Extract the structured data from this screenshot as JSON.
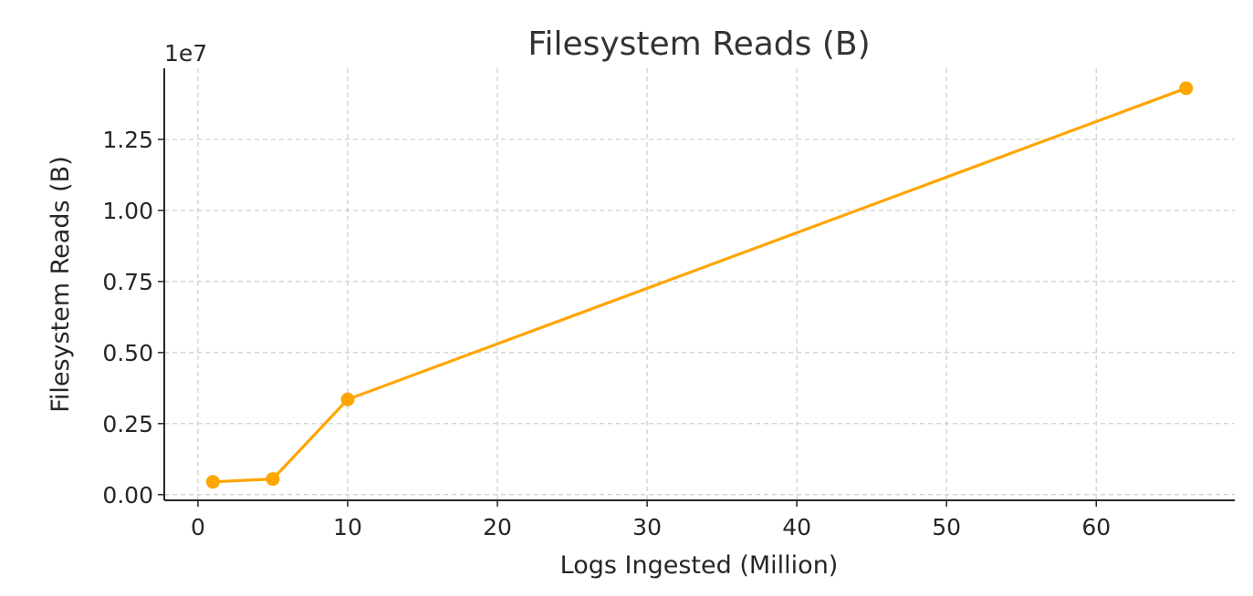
{
  "chart_data": {
    "type": "line",
    "title": "Filesystem Reads (B)",
    "xlabel": "Logs Ingested (Million)",
    "ylabel": "Filesystem Reads (B)",
    "y_offset_label": "1e7",
    "xlim": [
      -2.25,
      69.25
    ],
    "ylim": [
      -200000,
      15000000
    ],
    "x_ticks": [
      0,
      10,
      20,
      30,
      40,
      50,
      60
    ],
    "x_tick_labels": [
      "0",
      "10",
      "20",
      "30",
      "40",
      "50",
      "60"
    ],
    "y_ticks": [
      0,
      2500000,
      5000000,
      7500000,
      10000000,
      12500000
    ],
    "y_tick_labels": [
      "0.00",
      "0.25",
      "0.50",
      "0.75",
      "1.00",
      "1.25"
    ],
    "grid": true,
    "series": [
      {
        "color": "#FFA500",
        "x": [
          1,
          5,
          10,
          66
        ],
        "y": [
          450000,
          550000,
          3350000,
          14300000
        ]
      }
    ]
  }
}
